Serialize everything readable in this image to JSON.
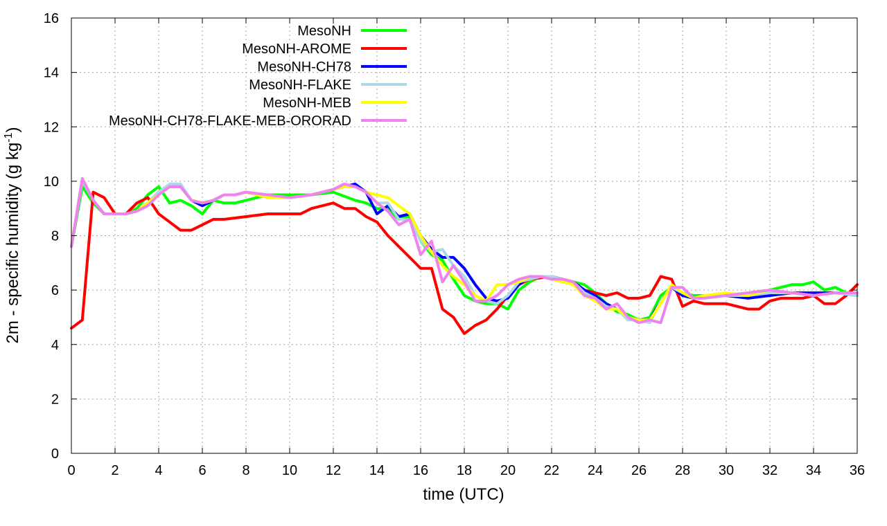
{
  "chart_data": {
    "type": "line",
    "xlabel": "time (UTC)",
    "ylabel": "2m - specific humidity (g kg",
    "ylabel_superscript": "-1",
    "ylabel_suffix": ")",
    "xlim": [
      0,
      36
    ],
    "ylim": [
      0,
      16
    ],
    "xticks": [
      0,
      2,
      4,
      6,
      8,
      10,
      12,
      14,
      16,
      18,
      20,
      22,
      24,
      26,
      28,
      30,
      32,
      34,
      36
    ],
    "yticks": [
      0,
      2,
      4,
      6,
      8,
      10,
      12,
      14,
      16
    ],
    "grid": true,
    "legend_position": "top-left",
    "series": [
      {
        "name": "MesoNH",
        "color": "#00ff00",
        "x": [
          0,
          0.5,
          1,
          1.5,
          2,
          2.5,
          3,
          3.5,
          4,
          4.5,
          5,
          5.5,
          6,
          6.5,
          7,
          7.5,
          8,
          9,
          10,
          11,
          12,
          13,
          13.5,
          14,
          14.5,
          15,
          15.5,
          16,
          16.5,
          17,
          17.5,
          18,
          18.5,
          19,
          19.5,
          20,
          20.5,
          21,
          21.5,
          22,
          22.5,
          23,
          23.5,
          24,
          24.5,
          25,
          25.5,
          26,
          26.5,
          27,
          27.5,
          28,
          28.5,
          29,
          29.5,
          30,
          31,
          32,
          32.5,
          33,
          33.5,
          34,
          34.5,
          35,
          35.5,
          36
        ],
        "values": [
          7.6,
          9.8,
          9.2,
          8.8,
          8.8,
          8.8,
          9.0,
          9.5,
          9.8,
          9.2,
          9.3,
          9.1,
          8.8,
          9.3,
          9.2,
          9.2,
          9.3,
          9.5,
          9.5,
          9.5,
          9.6,
          9.3,
          9.2,
          9.0,
          9.0,
          8.6,
          8.7,
          7.8,
          7.3,
          7.1,
          6.4,
          5.8,
          5.6,
          5.5,
          5.5,
          5.3,
          6.0,
          6.3,
          6.5,
          6.5,
          6.4,
          6.3,
          6.2,
          5.9,
          5.5,
          5.2,
          5.1,
          4.9,
          5.0,
          5.8,
          6.1,
          5.9,
          5.8,
          5.8,
          5.8,
          5.8,
          5.9,
          6.0,
          6.1,
          6.2,
          6.2,
          6.3,
          6.0,
          6.1,
          5.9,
          5.8
        ]
      },
      {
        "name": "MesoNH-AROME",
        "color": "#ff0000",
        "x": [
          0,
          0.5,
          1,
          1.5,
          2,
          2.5,
          3,
          3.5,
          4,
          4.5,
          5,
          5.5,
          6,
          6.5,
          7,
          8,
          9,
          10,
          10.5,
          11,
          12,
          12.5,
          13,
          13.5,
          14,
          14.5,
          15,
          15.5,
          16,
          16.5,
          17,
          17.5,
          18,
          18.5,
          19,
          19.5,
          20,
          20.5,
          21,
          22,
          23,
          23.5,
          24,
          24.5,
          25,
          25.5,
          26,
          26.5,
          27,
          27.5,
          28,
          28.5,
          29,
          30,
          30.5,
          31,
          31.5,
          32,
          32.5,
          33,
          33.5,
          34,
          34.5,
          35,
          35.5,
          36
        ],
        "values": [
          4.6,
          4.9,
          9.6,
          9.4,
          8.8,
          8.8,
          9.2,
          9.4,
          8.8,
          8.5,
          8.2,
          8.2,
          8.4,
          8.6,
          8.6,
          8.7,
          8.8,
          8.8,
          8.8,
          9.0,
          9.2,
          9.0,
          9.0,
          8.7,
          8.5,
          8.0,
          7.6,
          7.2,
          6.8,
          6.8,
          5.3,
          5.0,
          4.4,
          4.7,
          4.9,
          5.3,
          5.8,
          6.2,
          6.4,
          6.5,
          6.3,
          6.0,
          5.9,
          5.8,
          5.9,
          5.7,
          5.7,
          5.8,
          6.5,
          6.4,
          5.4,
          5.6,
          5.5,
          5.5,
          5.4,
          5.3,
          5.3,
          5.6,
          5.7,
          5.7,
          5.7,
          5.8,
          5.5,
          5.5,
          5.8,
          6.2
        ]
      },
      {
        "name": "MesoNH-CH78",
        "color": "#0000ff",
        "x": [
          0,
          0.5,
          1,
          1.5,
          2,
          2.5,
          3,
          3.5,
          4,
          4.5,
          5,
          5.5,
          6,
          6.5,
          7,
          7.5,
          8,
          9,
          10,
          11,
          12,
          12.5,
          13,
          13.5,
          14,
          14.5,
          15,
          15.5,
          16,
          16.5,
          17,
          17.5,
          18,
          18.5,
          19,
          19.5,
          20,
          20.5,
          21,
          21.5,
          22,
          22.5,
          23,
          23.5,
          24,
          24.5,
          25,
          25.5,
          26,
          26.5,
          27,
          27.5,
          28,
          28.5,
          29,
          30,
          31,
          32,
          33,
          34,
          35,
          36
        ],
        "values": [
          7.6,
          10.0,
          9.3,
          8.8,
          8.8,
          8.8,
          8.9,
          9.2,
          9.6,
          9.8,
          9.8,
          9.3,
          9.1,
          9.3,
          9.5,
          9.5,
          9.6,
          9.4,
          9.4,
          9.5,
          9.7,
          9.8,
          9.9,
          9.6,
          8.8,
          9.1,
          8.7,
          8.8,
          8.0,
          7.5,
          7.2,
          7.2,
          6.8,
          6.2,
          5.7,
          5.6,
          5.7,
          6.2,
          6.5,
          6.5,
          6.5,
          6.4,
          6.3,
          6.0,
          5.8,
          5.5,
          5.3,
          5.0,
          4.9,
          4.9,
          5.6,
          6.1,
          5.8,
          5.7,
          5.8,
          5.8,
          5.7,
          5.8,
          5.9,
          5.9,
          5.9,
          5.8
        ]
      },
      {
        "name": "MesoNH-FLAKE",
        "color": "#add8e6",
        "x": [
          0,
          0.5,
          1,
          1.5,
          2,
          2.5,
          3,
          3.5,
          4,
          4.5,
          5,
          5.5,
          6,
          6.5,
          7,
          7.5,
          8,
          9,
          10,
          11,
          12,
          12.5,
          13,
          13.5,
          14,
          14.5,
          15,
          15.5,
          16,
          16.5,
          17,
          17.5,
          18,
          18.5,
          19,
          19.5,
          20,
          20.5,
          21,
          21.5,
          22,
          22.5,
          23,
          23.5,
          24,
          24.5,
          25,
          25.5,
          26,
          26.5,
          27,
          27.5,
          28,
          28.5,
          29,
          30,
          31,
          32,
          33,
          34,
          35,
          36
        ],
        "values": [
          7.6,
          10.0,
          9.3,
          8.8,
          8.8,
          8.8,
          8.9,
          9.2,
          9.6,
          9.9,
          9.9,
          9.3,
          9.2,
          9.3,
          9.5,
          9.5,
          9.6,
          9.4,
          9.4,
          9.5,
          9.7,
          9.8,
          9.8,
          9.6,
          9.2,
          9.2,
          8.6,
          8.6,
          7.8,
          7.4,
          7.5,
          6.9,
          6.5,
          5.8,
          5.6,
          5.5,
          5.8,
          6.3,
          6.4,
          6.5,
          6.5,
          6.4,
          6.3,
          5.9,
          5.7,
          5.4,
          5.3,
          4.9,
          4.9,
          4.8,
          5.6,
          6.1,
          5.9,
          5.7,
          5.8,
          5.8,
          5.8,
          5.9,
          5.9,
          5.8,
          5.9,
          5.8
        ]
      },
      {
        "name": "MesoNH-MEB",
        "color": "#ffff00",
        "x": [
          0,
          0.5,
          1,
          1.5,
          2,
          2.5,
          3,
          3.5,
          4,
          4.5,
          5,
          5.5,
          6,
          6.5,
          7,
          7.5,
          8,
          9,
          10,
          11,
          12,
          12.5,
          13,
          13.5,
          14,
          14.5,
          15,
          15.5,
          16,
          16.5,
          17,
          17.5,
          18,
          18.5,
          19,
          19.5,
          20,
          20.5,
          21,
          21.5,
          22,
          22.5,
          23,
          23.5,
          24,
          24.5,
          25,
          25.5,
          26,
          26.5,
          27,
          27.5,
          28,
          28.5,
          29,
          30,
          31,
          32,
          33,
          34,
          35,
          36
        ],
        "values": [
          7.6,
          10.1,
          9.3,
          8.8,
          8.8,
          8.8,
          8.9,
          9.2,
          9.5,
          9.8,
          9.8,
          9.3,
          9.2,
          9.3,
          9.5,
          9.5,
          9.6,
          9.4,
          9.4,
          9.5,
          9.7,
          9.8,
          9.8,
          9.6,
          9.5,
          9.4,
          9.1,
          8.8,
          8.0,
          7.4,
          6.9,
          6.5,
          6.2,
          5.8,
          5.6,
          6.2,
          6.2,
          6.3,
          6.5,
          6.5,
          6.4,
          6.3,
          6.2,
          5.8,
          5.6,
          5.3,
          5.3,
          5.0,
          4.9,
          4.9,
          5.5,
          6.2,
          5.9,
          5.7,
          5.8,
          5.9,
          5.8,
          6.0,
          5.9,
          5.8,
          5.9,
          5.9
        ]
      },
      {
        "name": "MesoNH-CH78-FLAKE-MEB-ORORAD",
        "color": "#ee82ee",
        "x": [
          0,
          0.5,
          1,
          1.5,
          2,
          2.5,
          3,
          3.5,
          4,
          4.5,
          5,
          5.5,
          6,
          6.5,
          7,
          7.5,
          8,
          9,
          10,
          11,
          12,
          12.5,
          13,
          13.5,
          14,
          14.5,
          15,
          15.5,
          16,
          16.5,
          17,
          17.5,
          18,
          18.5,
          19,
          19.5,
          20,
          20.5,
          21,
          21.5,
          22,
          22.5,
          23,
          23.5,
          24,
          24.5,
          25,
          25.5,
          26,
          26.5,
          27,
          27.5,
          28,
          28.5,
          29,
          30,
          31,
          32,
          33,
          34,
          35,
          36
        ],
        "values": [
          7.6,
          10.1,
          9.3,
          8.8,
          8.8,
          8.8,
          8.9,
          9.1,
          9.5,
          9.8,
          9.8,
          9.3,
          9.2,
          9.3,
          9.5,
          9.5,
          9.6,
          9.5,
          9.4,
          9.5,
          9.7,
          9.9,
          9.8,
          9.6,
          9.2,
          8.9,
          8.4,
          8.6,
          7.3,
          7.8,
          6.3,
          6.9,
          6.3,
          5.6,
          5.6,
          5.8,
          6.2,
          6.4,
          6.5,
          6.5,
          6.4,
          6.4,
          6.3,
          5.8,
          5.7,
          5.3,
          5.5,
          5.0,
          4.8,
          4.9,
          4.8,
          6.1,
          6.1,
          5.7,
          5.7,
          5.8,
          5.9,
          6.0,
          5.9,
          5.8,
          5.9,
          5.9
        ]
      }
    ]
  }
}
